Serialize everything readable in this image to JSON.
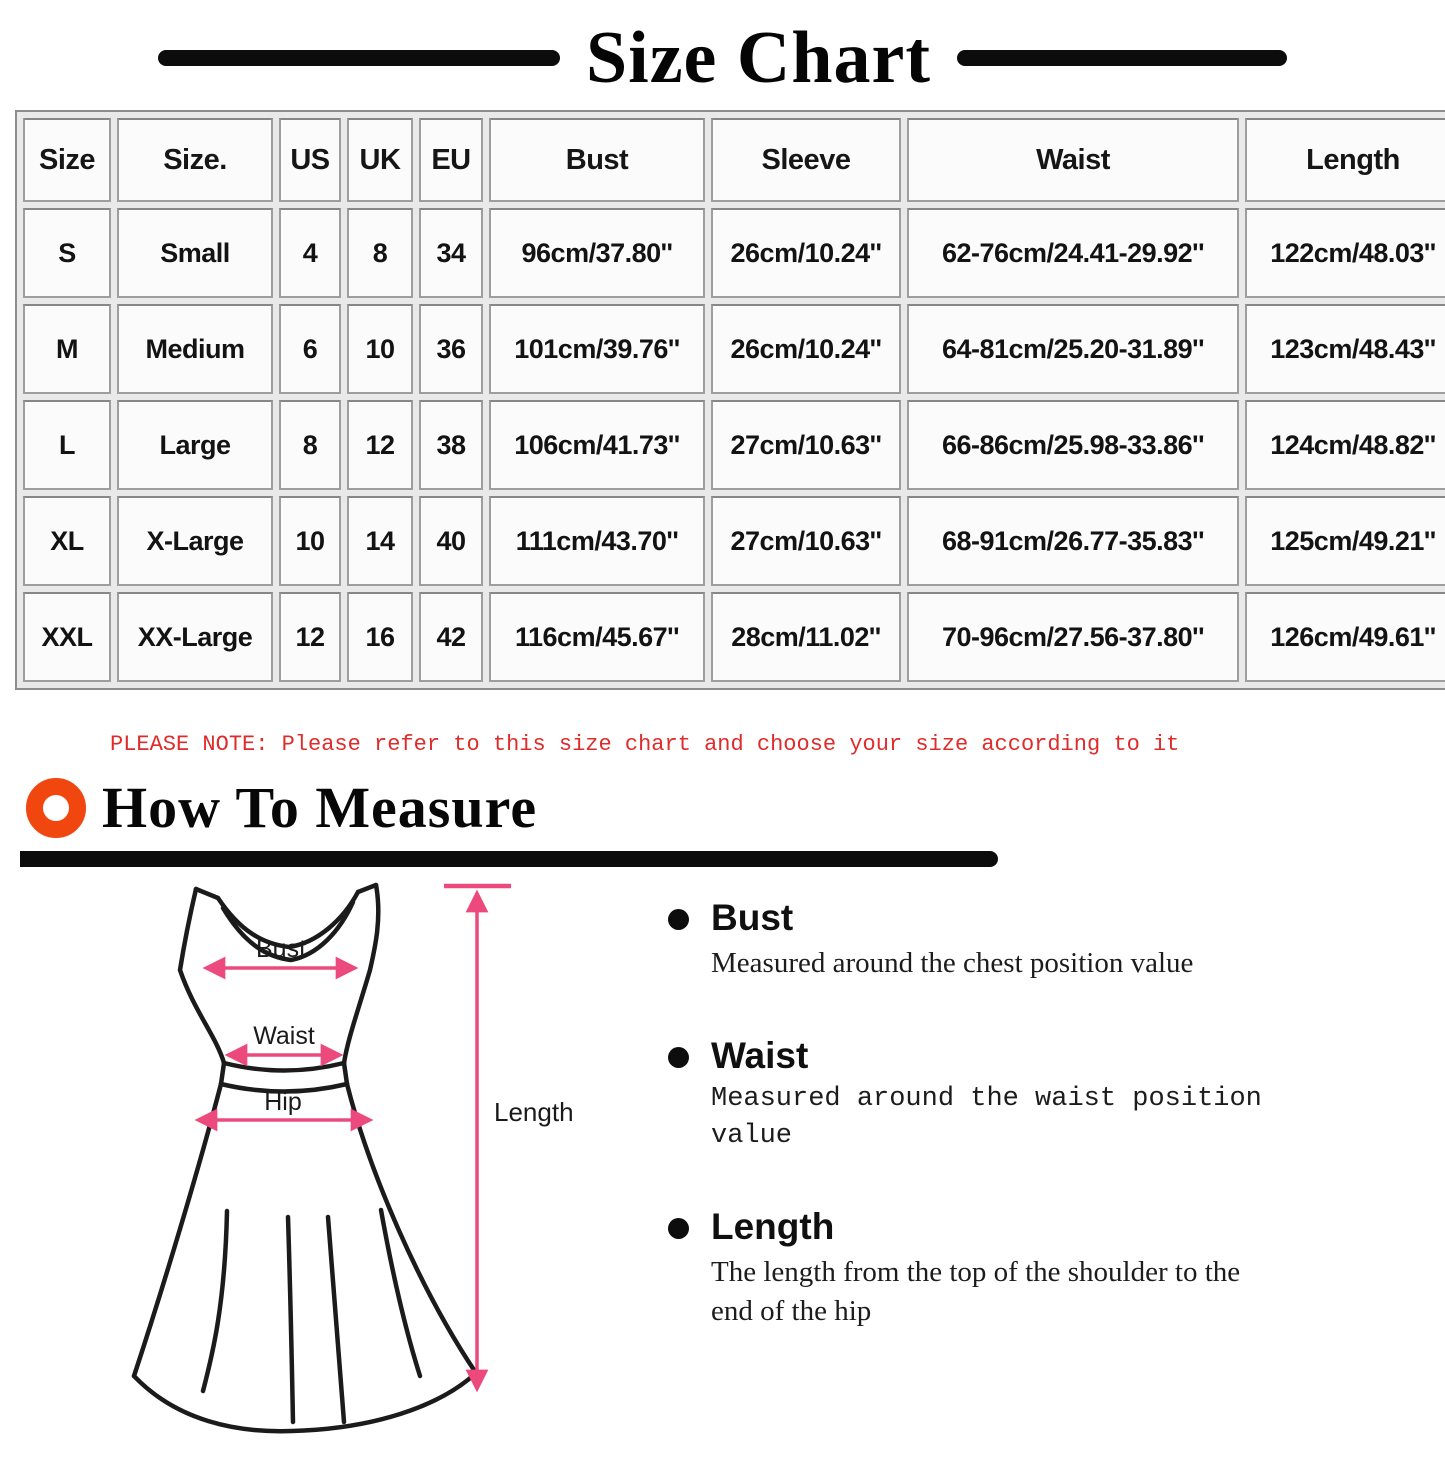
{
  "title": "Size Chart",
  "size_table": {
    "headers": [
      "Size",
      "Size.",
      "US",
      "UK",
      "EU",
      "Bust",
      "Sleeve",
      "Waist",
      "Length"
    ],
    "rows": [
      [
        "S",
        "Small",
        "4",
        "8",
        "34",
        "96cm/37.80''",
        "26cm/10.24''",
        "62-76cm/24.41-29.92''",
        "122cm/48.03''"
      ],
      [
        "M",
        "Medium",
        "6",
        "10",
        "36",
        "101cm/39.76''",
        "26cm/10.24''",
        "64-81cm/25.20-31.89''",
        "123cm/48.43''"
      ],
      [
        "L",
        "Large",
        "8",
        "12",
        "38",
        "106cm/41.73''",
        "27cm/10.63''",
        "66-86cm/25.98-33.86''",
        "124cm/48.82''"
      ],
      [
        "XL",
        "X-Large",
        "10",
        "14",
        "40",
        "111cm/43.70''",
        "27cm/10.63''",
        "68-91cm/26.77-35.83''",
        "125cm/49.21''"
      ],
      [
        "XXL",
        "XX-Large",
        "12",
        "16",
        "42",
        "116cm/45.67''",
        "28cm/11.02''",
        "70-96cm/27.56-37.80''",
        "126cm/49.61''"
      ]
    ]
  },
  "note": "PLEASE NOTE: Please refer to this size chart and choose your size according to it",
  "how_to_measure": {
    "heading": "How To Measure"
  },
  "diagram": {
    "bust_label": "Bust",
    "waist_label": "Waist",
    "hip_label": "Hip",
    "length_label": "Length"
  },
  "measure_guide": [
    {
      "term": "Bust",
      "description": "Measured around the chest position value"
    },
    {
      "term": "Waist",
      "description": "Measured around the waist position value"
    },
    {
      "term": "Length",
      "description": "The length from the top of the shoulder to the end of the hip"
    }
  ],
  "colors": {
    "note_red": "#e02b2b",
    "accent_orange": "#f1470f",
    "measure_pink": "#ec4a7d",
    "ink_black": "#0c0c0c"
  }
}
